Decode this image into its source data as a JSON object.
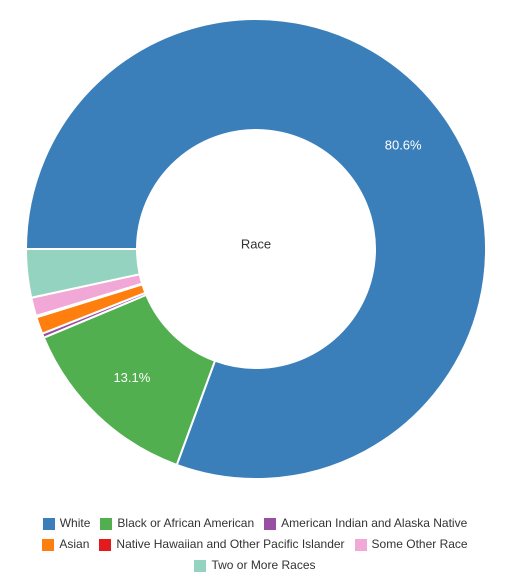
{
  "chart_data": {
    "type": "pie",
    "donut": true,
    "center_label": "Race",
    "start_angle_deg": 180,
    "direction": "clockwise",
    "slices": [
      {
        "label": "White",
        "value": 80.6,
        "color": "#3a7fba",
        "data_label": "80.6%"
      },
      {
        "label": "Black or African American",
        "value": 13.1,
        "color": "#52af50",
        "data_label": "13.1%"
      },
      {
        "label": "American Indian and Alaska Native",
        "value": 0.3,
        "color": "#984ea3",
        "data_label": ""
      },
      {
        "label": "Asian",
        "value": 1.2,
        "color": "#ff7f0e",
        "data_label": ""
      },
      {
        "label": "Native Hawaiian and Other Pacific Islander",
        "value": 0.1,
        "color": "#e41a1c",
        "data_label": ""
      },
      {
        "label": "Some Other Race",
        "value": 1.3,
        "color": "#f1a8d6",
        "data_label": ""
      },
      {
        "label": "Two or More Races",
        "value": 3.4,
        "color": "#93d3bf",
        "data_label": ""
      }
    ],
    "legend_position": "bottom"
  }
}
